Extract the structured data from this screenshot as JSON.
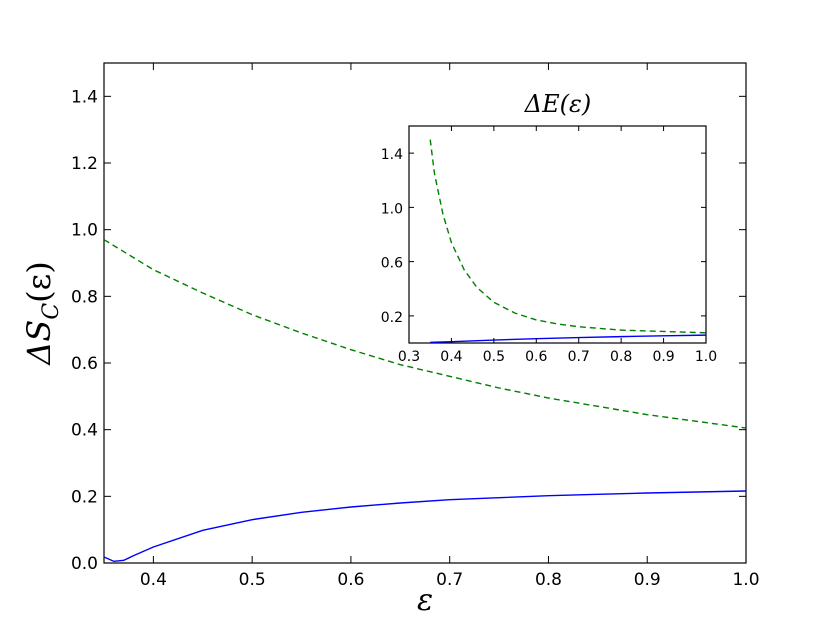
{
  "chart_data": [
    {
      "type": "line",
      "title": "",
      "xlabel": "ε",
      "ylabel_base": "ΔS",
      "ylabel_sub": "C",
      "ylabel_arg": "(ε)",
      "xlim": [
        0.35,
        1.0
      ],
      "ylim": [
        0.0,
        1.5
      ],
      "xticks": [
        0.4,
        0.5,
        0.6,
        0.7,
        0.8,
        0.9,
        1.0
      ],
      "xtick_labels": [
        "0.4",
        "0.5",
        "0.6",
        "0.7",
        "0.8",
        "0.9",
        "1.0"
      ],
      "yticks": [
        0.0,
        0.2,
        0.4,
        0.6,
        0.8,
        1.0,
        1.2,
        1.4
      ],
      "ytick_labels": [
        "0.0",
        "0.2",
        "0.4",
        "0.6",
        "0.8",
        "1.0",
        "1.2",
        "1.4"
      ],
      "grid": false,
      "series": [
        {
          "style": "dashed",
          "color": "#007f00",
          "x": [
            0.35,
            0.4,
            0.45,
            0.5,
            0.55,
            0.6,
            0.65,
            0.7,
            0.75,
            0.8,
            0.85,
            0.9,
            0.95,
            1.0
          ],
          "y": [
            0.97,
            0.88,
            0.81,
            0.745,
            0.69,
            0.64,
            0.595,
            0.56,
            0.525,
            0.495,
            0.47,
            0.445,
            0.425,
            0.405
          ]
        },
        {
          "style": "solid",
          "color": "#0000ff",
          "x": [
            0.35,
            0.36,
            0.37,
            0.38,
            0.4,
            0.45,
            0.5,
            0.55,
            0.6,
            0.65,
            0.7,
            0.75,
            0.8,
            0.85,
            0.9,
            0.95,
            1.0
          ],
          "y": [
            0.018,
            0.005,
            0.008,
            0.022,
            0.048,
            0.098,
            0.13,
            0.152,
            0.168,
            0.18,
            0.19,
            0.196,
            0.202,
            0.206,
            0.21,
            0.213,
            0.216
          ]
        }
      ]
    },
    {
      "type": "line",
      "title": "ΔE(ε)",
      "xlim": [
        0.3,
        1.0
      ],
      "ylim": [
        0.0,
        1.6
      ],
      "xticks": [
        0.3,
        0.4,
        0.5,
        0.6,
        0.7,
        0.8,
        0.9,
        1.0
      ],
      "xtick_labels": [
        "0.3",
        "0.4",
        "0.5",
        "0.6",
        "0.7",
        "0.8",
        "0.9",
        "1.0"
      ],
      "yticks": [
        0.2,
        0.6,
        1.0,
        1.4
      ],
      "ytick_labels": [
        "0.2",
        "0.6",
        "1.0",
        "1.4"
      ],
      "grid": false,
      "series": [
        {
          "style": "dashed",
          "color": "#007f00",
          "x": [
            0.35,
            0.36,
            0.38,
            0.4,
            0.43,
            0.46,
            0.5,
            0.55,
            0.6,
            0.65,
            0.7,
            0.8,
            0.9,
            1.0
          ],
          "y": [
            1.5,
            1.25,
            0.95,
            0.74,
            0.54,
            0.41,
            0.3,
            0.22,
            0.17,
            0.14,
            0.12,
            0.095,
            0.085,
            0.075
          ]
        },
        {
          "style": "solid",
          "color": "#0000ff",
          "x": [
            0.35,
            0.4,
            0.5,
            0.6,
            0.7,
            0.8,
            0.9,
            1.0
          ],
          "y": [
            0.005,
            0.01,
            0.022,
            0.032,
            0.04,
            0.047,
            0.053,
            0.058
          ]
        }
      ]
    }
  ]
}
